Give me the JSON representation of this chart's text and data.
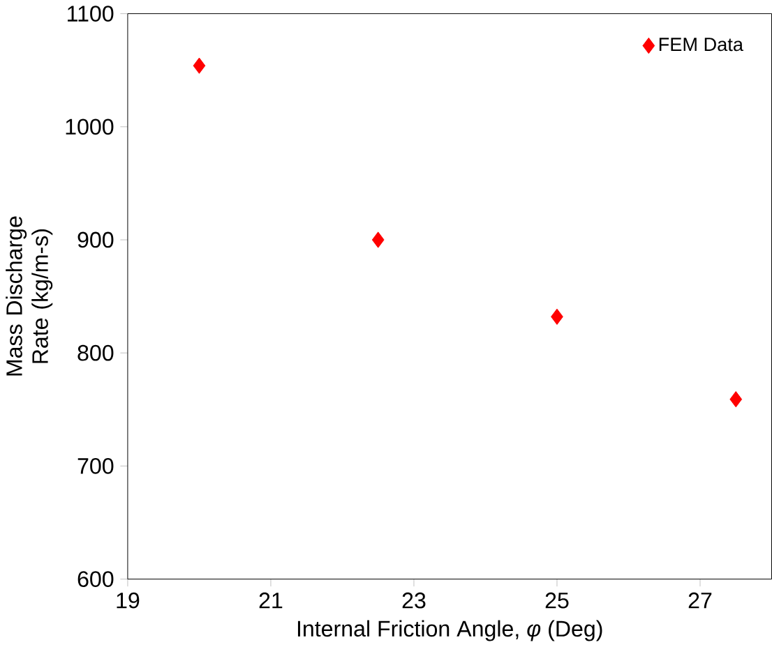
{
  "chart_data": {
    "type": "scatter",
    "xlabel": "Internal Friction Angle, *φ* (Deg)",
    "ylabel": "Mass Discharge Rate (kg/m-s)",
    "x": [
      20,
      22.5,
      25,
      27.5
    ],
    "series": [
      {
        "name": "FEM Data",
        "color": "#ff0000",
        "values": [
          1054,
          900,
          832,
          759
        ]
      }
    ],
    "xlim": [
      19,
      28
    ],
    "ylim": [
      600,
      1100
    ],
    "xticks": [
      19,
      21,
      23,
      25,
      27
    ],
    "yticks": [
      600,
      700,
      800,
      900,
      1000,
      1100
    ],
    "marker": "diamond",
    "legend": "top right",
    "grid": false
  }
}
